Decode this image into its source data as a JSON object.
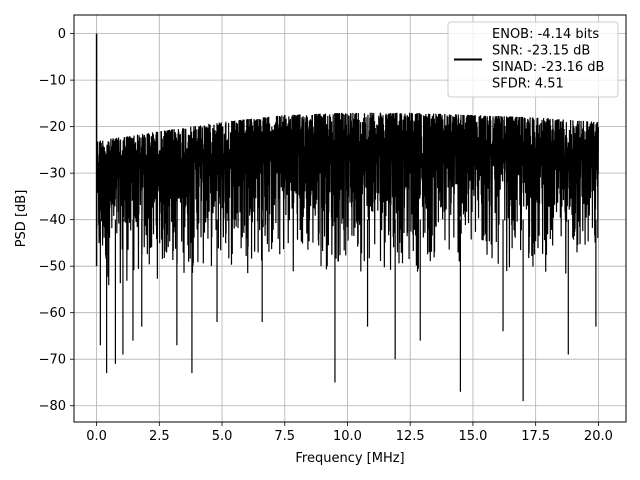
{
  "chart_data": {
    "type": "line",
    "title": "",
    "xlabel": "Frequency [MHz]",
    "ylabel": "PSD [dB]",
    "xlim": [
      -0.9,
      21.1
    ],
    "ylim": [
      -83.5,
      4.0
    ],
    "x_ticks": [
      0.0,
      2.5,
      5.0,
      7.5,
      10.0,
      12.5,
      15.0,
      17.5,
      20.0
    ],
    "x_tick_labels": [
      "0.0",
      "2.5",
      "5.0",
      "7.5",
      "10.0",
      "12.5",
      "15.0",
      "17.5",
      "20.0"
    ],
    "y_ticks": [
      0,
      -10,
      -20,
      -30,
      -40,
      -50,
      -60,
      -70,
      -80
    ],
    "y_tick_labels": [
      "0",
      "−10",
      "−20",
      "−30",
      "−40",
      "−50",
      "−60",
      "−70",
      "−80"
    ],
    "grid": true,
    "legend": {
      "placement": "top-right",
      "lines": [
        "ENOB: -4.14 bits",
        "SNR: -23.15 dB",
        "SINAD: -23.16 dB",
        "SFDR: 4.51"
      ]
    },
    "series": [
      {
        "color": "#000000",
        "x_range": [
          0.0,
          20.0
        ],
        "peak": {
          "x": 0.0,
          "y": 0.0
        },
        "upper_envelope": [
          [
            0.05,
            -23
          ],
          [
            2.5,
            -21
          ],
          [
            5.0,
            -19
          ],
          [
            7.5,
            -17.5
          ],
          [
            10.0,
            -17
          ],
          [
            12.5,
            -17
          ],
          [
            15.0,
            -17.5
          ],
          [
            17.5,
            -18
          ],
          [
            20.0,
            -19
          ]
        ],
        "typical_lower": [
          [
            0.0,
            -56
          ],
          [
            5.0,
            -52
          ],
          [
            10.0,
            -52
          ],
          [
            15.0,
            -52
          ],
          [
            20.0,
            -53
          ]
        ],
        "deep_minima": [
          [
            0.15,
            -67
          ],
          [
            0.4,
            -73
          ],
          [
            0.75,
            -71
          ],
          [
            1.05,
            -69
          ],
          [
            1.45,
            -66
          ],
          [
            1.8,
            -63
          ],
          [
            3.2,
            -67
          ],
          [
            3.8,
            -73
          ],
          [
            4.8,
            -62
          ],
          [
            6.6,
            -62
          ],
          [
            9.5,
            -75
          ],
          [
            10.8,
            -63
          ],
          [
            11.9,
            -70
          ],
          [
            12.9,
            -66
          ],
          [
            14.5,
            -77
          ],
          [
            16.2,
            -64
          ],
          [
            17.0,
            -79
          ],
          [
            18.8,
            -69
          ],
          [
            19.9,
            -63
          ]
        ]
      }
    ]
  }
}
